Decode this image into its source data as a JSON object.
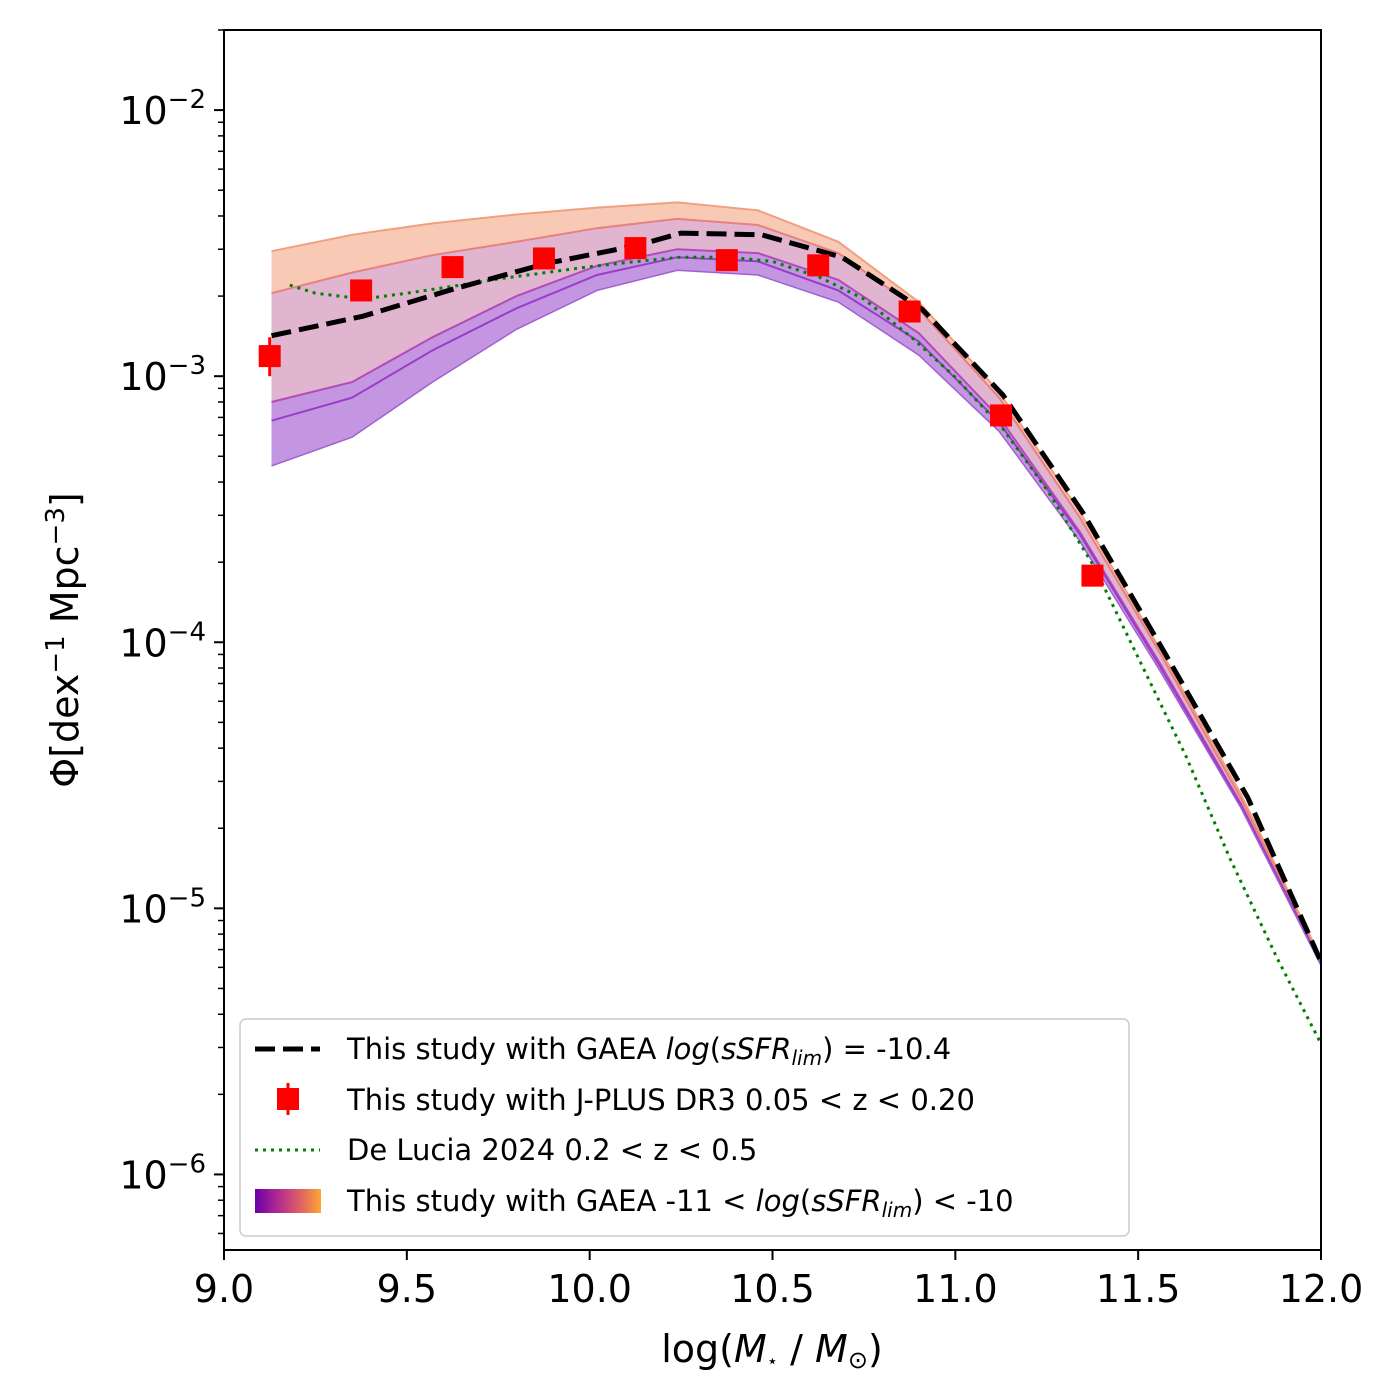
{
  "chart_data": {
    "type": "line",
    "xlabel": {
      "pre": "log(",
      "m1": "M",
      "sub1": "⋆",
      "slash": " / ",
      "m2": "M",
      "sub2": "⊙",
      "post": ")"
    },
    "ylabel": {
      "pre": "Φ[dex",
      "sup1": "−1",
      "mid": " Mpc",
      "sup2": "−3",
      "post": "]"
    },
    "xlim": [
      9.0,
      12.0
    ],
    "ylim": [
      5.2e-07,
      0.02
    ],
    "yscale": "log",
    "xticks": [
      {
        "v": 9.0,
        "label": "9.0"
      },
      {
        "v": 9.5,
        "label": "9.5"
      },
      {
        "v": 10.0,
        "label": "10.0"
      },
      {
        "v": 10.5,
        "label": "10.5"
      },
      {
        "v": 11.0,
        "label": "11.0"
      },
      {
        "v": 11.5,
        "label": "11.5"
      },
      {
        "v": 12.0,
        "label": "12.0"
      }
    ],
    "yticks": [
      {
        "v": 0.01,
        "base": "10",
        "exp": "−2"
      },
      {
        "v": 0.001,
        "base": "10",
        "exp": "−3"
      },
      {
        "v": 0.0001,
        "base": "10",
        "exp": "−4"
      },
      {
        "v": 1e-05,
        "base": "10",
        "exp": "−5"
      },
      {
        "v": 1e-06,
        "base": "10",
        "exp": "−6"
      }
    ],
    "grid": false,
    "legend_position": "lower-left",
    "colors": {
      "gaea_line": "#000000",
      "jplus": "#ff0000",
      "delucia": "#008000",
      "band_outer_high": "#f4a582",
      "band_outer_low": "#9440c9",
      "band_inner_high": "#e88080",
      "band_inner_low": "#b44ab8",
      "legend_gradient": [
        "#6a00a8",
        "#b12a90",
        "#e16462",
        "#fca636"
      ]
    },
    "series": [
      {
        "name": "This study with GAEA log(sSFR_lim) = -10.4",
        "style": "dashed",
        "x": [
          9.13,
          9.38,
          9.63,
          9.88,
          10.13,
          10.25,
          10.47,
          10.69,
          10.91,
          11.13,
          11.35,
          11.57,
          11.8,
          12.0
        ],
        "y": [
          0.00142,
          0.00168,
          0.00213,
          0.00265,
          0.0031,
          0.00345,
          0.0034,
          0.0028,
          0.00178,
          0.00085,
          0.000305,
          9.25e-05,
          2.6e-05,
          6.3e-06
        ]
      },
      {
        "name": "This study with J-PLUS DR3 0.05 < z < 0.20",
        "style": "markers",
        "x": [
          9.125,
          9.375,
          9.625,
          9.875,
          10.125,
          10.375,
          10.625,
          10.875,
          11.125,
          11.375
        ],
        "y": [
          0.00119,
          0.0021,
          0.00257,
          0.00277,
          0.00303,
          0.00273,
          0.00261,
          0.00175,
          0.000712,
          0.000178
        ],
        "yerr_low": [
          0.00019,
          0,
          0,
          0,
          0,
          0,
          0,
          0,
          0,
          0
        ],
        "yerr_high": [
          0.00021,
          0,
          0,
          0,
          0,
          0,
          0,
          0,
          0,
          0
        ]
      },
      {
        "name": "De Lucia 2024 0.2 < z < 0.5",
        "style": "dotted",
        "x": [
          9.18,
          9.25,
          9.38,
          9.5,
          9.63,
          9.75,
          9.88,
          10.0,
          10.13,
          10.25,
          10.38,
          10.5,
          10.63,
          10.75,
          10.88,
          11.0,
          11.13,
          11.25,
          11.38,
          11.5,
          11.63,
          11.75,
          11.88,
          12.0
        ],
        "y": [
          0.0022,
          0.00205,
          0.00195,
          0.00205,
          0.00218,
          0.00232,
          0.00245,
          0.00258,
          0.0027,
          0.0028,
          0.0028,
          0.0027,
          0.00235,
          0.00195,
          0.0014,
          0.00099,
          0.000635,
          0.000375,
          0.000192,
          8.75e-05,
          3.75e-05,
          1.55e-05,
          6.5e-06,
          3.1e-06
        ]
      }
    ],
    "bands": [
      {
        "name": "outer",
        "x": [
          9.13,
          9.35,
          9.57,
          9.8,
          10.02,
          10.24,
          10.46,
          10.68,
          10.9,
          11.12,
          11.34,
          11.56,
          11.78,
          12.0
        ],
        "upper": [
          0.00295,
          0.0034,
          0.00375,
          0.00405,
          0.0043,
          0.0045,
          0.0042,
          0.0032,
          0.0019,
          0.00087,
          0.00031,
          9.4e-05,
          2.7e-05,
          6.5e-06
        ],
        "lower": [
          0.00046,
          0.00059,
          0.00095,
          0.0015,
          0.0021,
          0.0025,
          0.0024,
          0.0019,
          0.0012,
          0.00062,
          0.00024,
          7.8e-05,
          2.4e-05,
          6.1e-06
        ]
      },
      {
        "name": "inner",
        "x": [
          9.13,
          9.35,
          9.57,
          9.8,
          10.02,
          10.24,
          10.46,
          10.68,
          10.9,
          11.12,
          11.34,
          11.56,
          11.78,
          12.0
        ],
        "upper": [
          0.00205,
          0.00245,
          0.00285,
          0.0032,
          0.0036,
          0.0039,
          0.0037,
          0.0029,
          0.00178,
          0.00083,
          0.000295,
          9.1e-05,
          2.6e-05,
          6.3e-06
        ],
        "lower": [
          0.00068,
          0.00083,
          0.00125,
          0.0018,
          0.0024,
          0.0028,
          0.0027,
          0.0021,
          0.00135,
          0.00067,
          0.000255,
          8.1e-05,
          2.45e-05,
          6.2e-06
        ]
      },
      {
        "name": "inner-lines",
        "x": [
          9.13,
          9.35,
          9.57,
          9.8,
          10.02,
          10.24,
          10.46,
          10.68,
          10.9,
          11.12,
          11.34,
          11.56,
          11.78,
          12.0
        ],
        "upper": [
          0.0008,
          0.00095,
          0.0014,
          0.002,
          0.0026,
          0.003,
          0.0029,
          0.0023,
          0.00145,
          0.0007,
          0.00026,
          8.3e-05,
          2.48e-05,
          6.2e-06
        ],
        "lower": [
          0.00068,
          0.00083,
          0.00125,
          0.0018,
          0.0024,
          0.0028,
          0.0027,
          0.0021,
          0.00135,
          0.00067,
          0.000255,
          8.1e-05,
          2.45e-05,
          6.2e-06
        ]
      }
    ],
    "legend": [
      {
        "key": "dashed",
        "pre": "This study with GAEA ",
        "ital": "log",
        "paren_open": "(",
        "ital2": "sSFR",
        "sub": "lim",
        "rest": ") = -10.4"
      },
      {
        "key": "markers",
        "text": "This study with J-PLUS DR3 0.05 < z < 0.20"
      },
      {
        "key": "dotted",
        "text": "De Lucia 2024 0.2 < z < 0.5"
      },
      {
        "key": "gradient",
        "pre": "This study with GAEA -11 < ",
        "ital": "log",
        "paren_open": "(",
        "ital2": "sSFR",
        "sub": "lim",
        "rest": ") < -10"
      }
    ]
  }
}
